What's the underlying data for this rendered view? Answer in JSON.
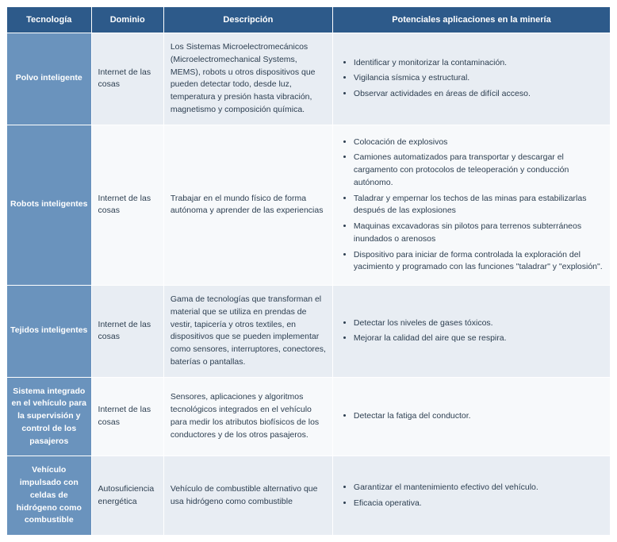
{
  "table": {
    "columns": [
      {
        "label": "Tecnología",
        "width": "14%"
      },
      {
        "label": "Dominio",
        "width": "12%"
      },
      {
        "label": "Descripción",
        "width": "28%"
      },
      {
        "label": "Potenciales aplicaciones en la minería",
        "width": "46%"
      }
    ],
    "header_bg": "#2d5a8a",
    "tech_col_bg": "#6a93bd",
    "row_alt_bg": "#e8edf3",
    "row_norm_bg": "#f7f9fb",
    "text_color": "#2c3e50",
    "rows": [
      {
        "tech": "Polvo inteligente",
        "domain": "Internet de las cosas",
        "desc": "Los Sistemas Microelectromecánicos (Microelectromechanical Systems, MEMS), robots u otros dispositivos que pueden detectar todo, desde luz, temperatura y presión hasta vibración, magnetismo y composición química.",
        "apps": [
          "Identificar y monitorizar la contaminación.",
          "Vigilancia sísmica y estructural.",
          "Observar actividades en áreas de difícil acceso."
        ],
        "alt": true
      },
      {
        "tech": "Robots inteligentes",
        "domain": "Internet de las cosas",
        "desc": "Trabajar en el mundo físico de forma autónoma y aprender de las experiencias",
        "apps": [
          "Colocación de explosivos",
          "Camiones automatizados para transportar y descargar el cargamento con protocolos de teleoperación y conducción autónomo.",
          "Taladrar y empernar los techos de las minas para estabilizarlas después de las explosiones",
          "Maquinas excavadoras sin pilotos para terrenos subterráneos inundados o arenosos",
          "Dispositivo para iniciar de forma controlada la exploración del yacimiento y programado con las funciones \"taladrar\" y \"explosión\"."
        ],
        "alt": false
      },
      {
        "tech": "Tejidos inteligentes",
        "domain": "Internet de las cosas",
        "desc": "Gama de tecnologías que transforman el material que se utiliza en prendas de vestir, tapicería y otros textiles, en dispositivos que se pueden implementar como sensores, interruptores, conectores, baterías o pantallas.",
        "apps": [
          "Detectar los niveles de gases tóxicos.",
          "Mejorar la calidad del aire que se respira."
        ],
        "alt": true
      },
      {
        "tech": "Sistema integrado en el vehículo para la supervisión y control de los pasajeros",
        "domain": "Internet de las cosas",
        "desc": "Sensores, aplicaciones y algoritmos tecnológicos integrados en el vehículo para medir los atributos biofísicos de los conductores y de los otros pasajeros.",
        "apps": [
          "Detectar la fatiga del conductor."
        ],
        "alt": false
      },
      {
        "tech": "Vehículo impulsado con celdas de hidrógeno como combustible",
        "domain": "Autosuficiencia energética",
        "desc": "Vehículo de combustible alternativo que usa hidrógeno como combustible",
        "apps": [
          "Garantizar el mantenimiento efectivo del vehículo.",
          "Eficacia operativa."
        ],
        "alt": true
      }
    ]
  }
}
